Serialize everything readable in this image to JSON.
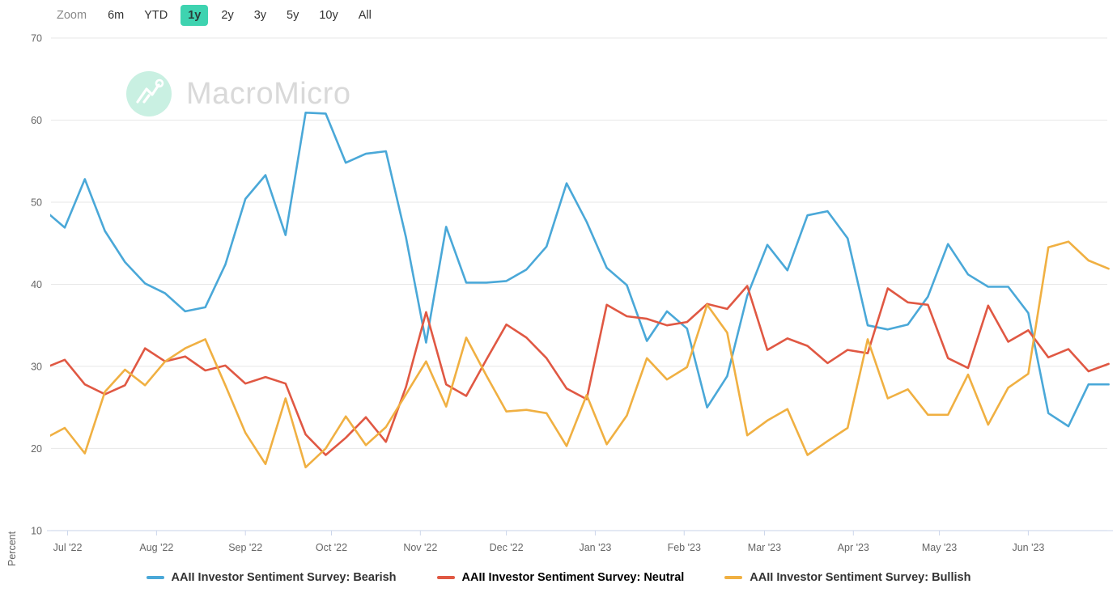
{
  "toolbar": {
    "zoom_label": "Zoom",
    "ranges": [
      {
        "label": "6m",
        "selected": false
      },
      {
        "label": "YTD",
        "selected": false
      },
      {
        "label": "1y",
        "selected": true
      },
      {
        "label": "2y",
        "selected": false
      },
      {
        "label": "3y",
        "selected": false
      },
      {
        "label": "5y",
        "selected": false
      },
      {
        "label": "10y",
        "selected": false
      },
      {
        "label": "All",
        "selected": false
      }
    ],
    "selected_color": "#3ed3b0"
  },
  "branding": {
    "watermark": "MacroMicro",
    "logo_icon": "macromicro-line-chart-icon",
    "logo_badge_color": "#c9f0e2",
    "watermark_text_color": "#d9d9d9"
  },
  "chart": {
    "ylabel": "Percent",
    "background": "#ffffff",
    "gridline_color": "#e7e7e7",
    "axis_line_color": "#ccd6eb",
    "axis_text_color": "#666666"
  },
  "chart_data": {
    "type": "line",
    "ylabel": "Percent",
    "ylim": [
      10,
      70
    ],
    "grid": true,
    "legend_position": "bottom",
    "y_ticks": [
      70,
      60,
      50,
      40,
      30,
      20,
      10
    ],
    "x_axis_ticks": [
      {
        "label": "Jul '22",
        "date": "2022-07-01"
      },
      {
        "label": "Aug '22",
        "date": "2022-08-01"
      },
      {
        "label": "Sep '22",
        "date": "2022-09-01"
      },
      {
        "label": "Oct '22",
        "date": "2022-10-01"
      },
      {
        "label": "Nov '22",
        "date": "2022-11-01"
      },
      {
        "label": "Dec '22",
        "date": "2022-12-01"
      },
      {
        "label": "Jan '23",
        "date": "2023-01-01"
      },
      {
        "label": "Feb '23",
        "date": "2023-02-01"
      },
      {
        "label": "Mar '23",
        "date": "2023-03-01"
      },
      {
        "label": "Apr '23",
        "date": "2023-04-01"
      },
      {
        "label": "May '23",
        "date": "2023-05-01"
      },
      {
        "label": "Jun '23",
        "date": "2023-06-01"
      }
    ],
    "x": [
      "2022-06-23",
      "2022-06-30",
      "2022-07-07",
      "2022-07-14",
      "2022-07-21",
      "2022-07-28",
      "2022-08-04",
      "2022-08-11",
      "2022-08-18",
      "2022-08-25",
      "2022-09-01",
      "2022-09-08",
      "2022-09-15",
      "2022-09-22",
      "2022-09-29",
      "2022-10-06",
      "2022-10-13",
      "2022-10-20",
      "2022-10-27",
      "2022-11-03",
      "2022-11-10",
      "2022-11-17",
      "2022-11-24",
      "2022-12-01",
      "2022-12-08",
      "2022-12-15",
      "2022-12-22",
      "2022-12-29",
      "2023-01-05",
      "2023-01-12",
      "2023-01-19",
      "2023-01-26",
      "2023-02-02",
      "2023-02-09",
      "2023-02-16",
      "2023-02-23",
      "2023-03-02",
      "2023-03-09",
      "2023-03-16",
      "2023-03-23",
      "2023-03-30",
      "2023-04-06",
      "2023-04-13",
      "2023-04-20",
      "2023-04-27",
      "2023-05-04",
      "2023-05-11",
      "2023-05-18",
      "2023-05-25",
      "2023-06-01",
      "2023-06-08",
      "2023-06-15",
      "2023-06-22",
      "2023-06-29"
    ],
    "series": [
      {
        "name": "AAII Investor Sentiment Survey: Bearish",
        "color": "#4AA8D8",
        "values": [
          49.0,
          46.9,
          52.8,
          46.5,
          42.7,
          40.1,
          38.9,
          36.7,
          37.2,
          42.4,
          50.4,
          53.3,
          46.0,
          60.9,
          60.8,
          54.8,
          55.9,
          56.2,
          45.7,
          32.9,
          47.0,
          40.2,
          40.2,
          40.4,
          41.8,
          44.6,
          52.3,
          47.6,
          42.0,
          39.9,
          33.1,
          36.7,
          34.6,
          25.0,
          28.8,
          38.6,
          44.8,
          41.7,
          48.4,
          48.9,
          45.6,
          35.0,
          34.5,
          35.1,
          38.5,
          44.9,
          41.2,
          39.7,
          39.7,
          36.5,
          24.3,
          22.7,
          27.8,
          27.8
        ]
      },
      {
        "name": "AAII Investor Sentiment Survey: Neutral",
        "color": "#E05843",
        "values": [
          29.8,
          30.8,
          27.8,
          26.6,
          27.7,
          32.2,
          30.6,
          31.2,
          29.5,
          30.1,
          27.9,
          28.7,
          27.9,
          21.7,
          19.2,
          21.3,
          23.8,
          20.8,
          27.5,
          36.6,
          27.8,
          26.4,
          30.8,
          35.1,
          33.5,
          31.0,
          27.3,
          26.0,
          37.5,
          36.1,
          35.8,
          35.0,
          35.4,
          37.6,
          37.0,
          39.8,
          32.0,
          33.4,
          32.5,
          30.4,
          32.0,
          31.6,
          39.5,
          37.8,
          37.5,
          31.0,
          29.8,
          37.4,
          33.0,
          34.4,
          31.1,
          32.1,
          29.4,
          30.3
        ]
      },
      {
        "name": "AAII Investor Sentiment Survey: Bullish",
        "color": "#F0B042",
        "values": [
          21.2,
          22.5,
          19.4,
          26.9,
          29.6,
          27.7,
          30.6,
          32.2,
          33.3,
          27.7,
          21.9,
          18.1,
          26.1,
          17.7,
          20.0,
          23.9,
          20.4,
          22.6,
          26.6,
          30.6,
          25.1,
          33.5,
          28.9,
          24.5,
          24.7,
          24.3,
          20.3,
          26.5,
          20.5,
          24.0,
          31.0,
          28.4,
          29.9,
          37.5,
          34.1,
          21.6,
          23.4,
          24.8,
          19.2,
          20.9,
          22.5,
          33.3,
          26.1,
          27.2,
          24.1,
          24.1,
          29.0,
          22.9,
          27.4,
          29.1,
          44.5,
          45.2,
          42.9,
          41.9
        ]
      }
    ]
  }
}
